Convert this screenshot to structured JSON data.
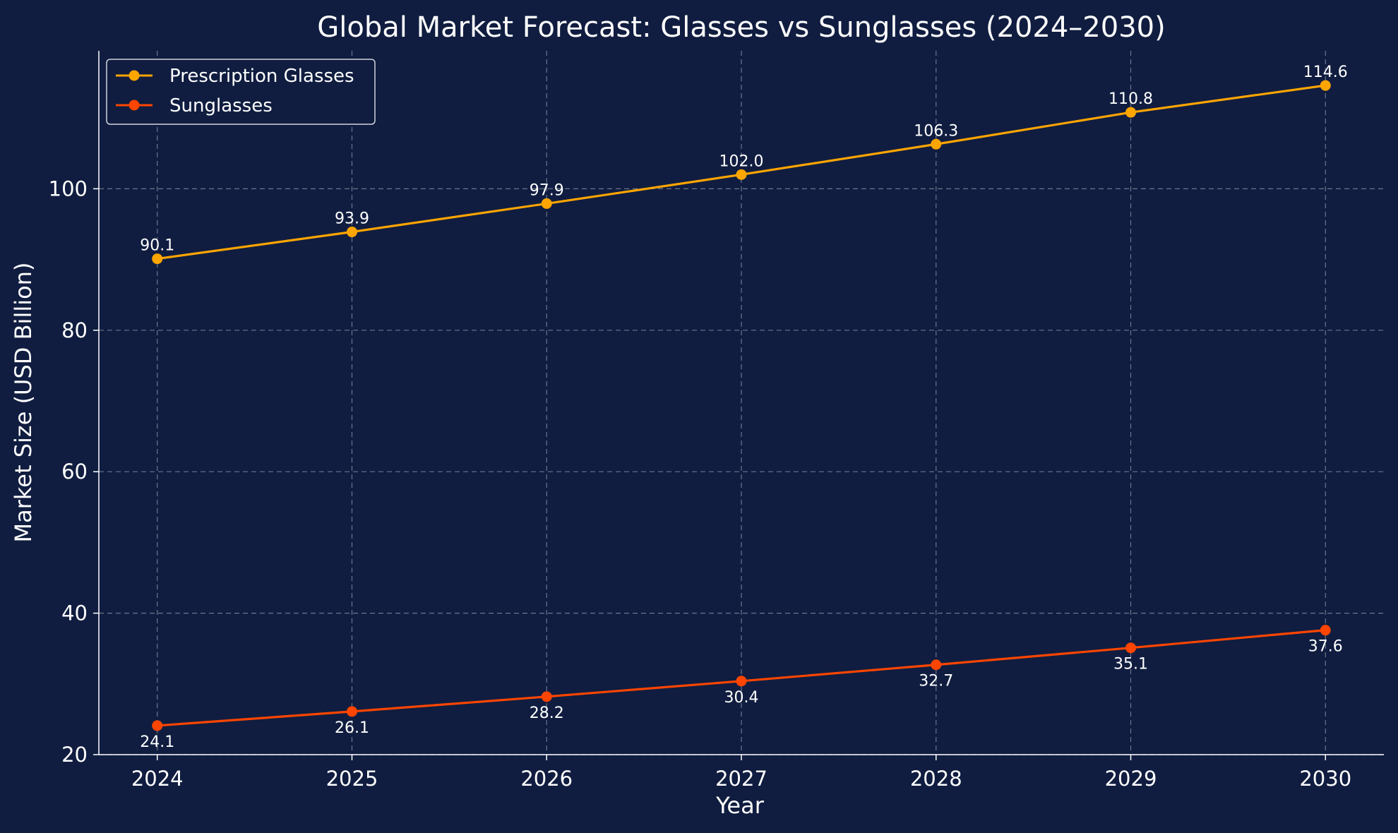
{
  "chart_data": {
    "type": "line",
    "title": "Global Market Forecast: Glasses vs Sunglasses (2024–2030)",
    "xlabel": "Year",
    "ylabel": "Market Size (USD Billion)",
    "x": [
      "2024",
      "2025",
      "2026",
      "2027",
      "2028",
      "2029",
      "2030"
    ],
    "yticks": [
      "20",
      "40",
      "60",
      "80",
      "100"
    ],
    "xlim": [
      2023.7,
      2030.3
    ],
    "ylim": [
      20,
      119.5
    ],
    "grid": true,
    "legend_position": "top-left",
    "series": [
      {
        "name": "Prescription Glasses",
        "color": "#ffa500",
        "values": [
          90.1,
          93.9,
          97.9,
          102.0,
          106.3,
          110.8,
          114.6
        ],
        "labels": [
          "90.1",
          "93.9",
          "97.9",
          "102.0",
          "106.3",
          "110.8",
          "114.6"
        ],
        "label_side": "above"
      },
      {
        "name": "Sunglasses",
        "color": "#ff4500",
        "values": [
          24.1,
          26.1,
          28.2,
          30.4,
          32.7,
          35.1,
          37.6
        ],
        "labels": [
          "24.1",
          "26.1",
          "28.2",
          "30.4",
          "32.7",
          "35.1",
          "37.6"
        ],
        "label_side": "below"
      }
    ]
  }
}
